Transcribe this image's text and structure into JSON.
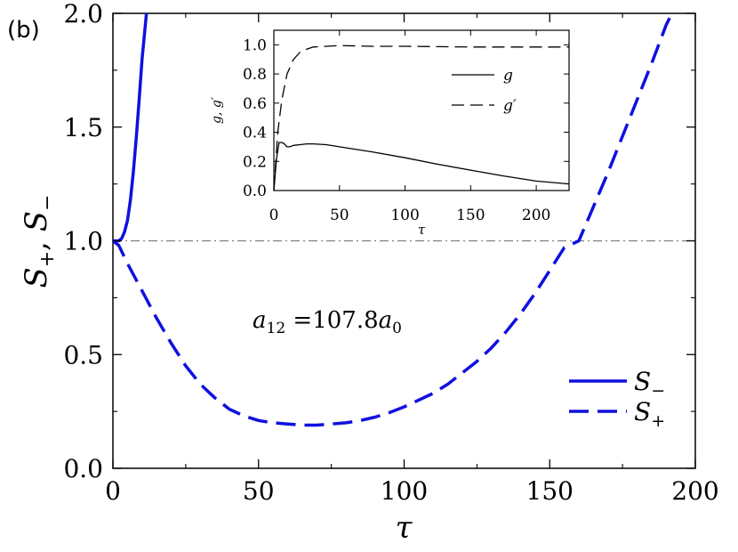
{
  "panel_label": "(b)",
  "annotation": {
    "base": "a",
    "sub": "12",
    "eq": " =107.8",
    "base2": "a",
    "sub2": "0"
  },
  "colors": {
    "main": "#1010e0",
    "ref": "#808080",
    "inset": "#000000"
  },
  "chart_data": [
    {
      "id": "main",
      "type": "line",
      "xlabel": "τ",
      "ylabel": {
        "s1": "S",
        "sub1": "+",
        "sep": ", ",
        "s2": "S",
        "sub2": "−"
      },
      "xlim": [
        0,
        200
      ],
      "ylim": [
        0,
        2.0
      ],
      "xticks": [
        0,
        50,
        100,
        150,
        200
      ],
      "xtick_labels": [
        "0",
        "50",
        "100",
        "150",
        "200"
      ],
      "yticks": [
        0,
        0.5,
        1.0,
        1.5,
        2.0
      ],
      "ytick_labels": [
        "0.0",
        "0.5",
        "1.0",
        "1.5",
        "2.0"
      ],
      "reference_line": {
        "y": 1.0,
        "style": "dash-dot"
      },
      "series": [
        {
          "name": "S−",
          "legend_sub": "−",
          "style": "solid",
          "x": [
            0,
            2,
            3,
            4,
            5,
            6,
            7,
            8,
            9,
            10,
            11.5
          ],
          "y": [
            1.0,
            1.0,
            1.01,
            1.04,
            1.09,
            1.18,
            1.3,
            1.45,
            1.62,
            1.8,
            2.0
          ]
        },
        {
          "name": "S+",
          "legend_sub": "+",
          "style": "dashed",
          "x": [
            0,
            2,
            5,
            10,
            15,
            20,
            25,
            30,
            35,
            40,
            45,
            50,
            55,
            60,
            65,
            70,
            75,
            80,
            85,
            90,
            95,
            100,
            105,
            110,
            115,
            120,
            125,
            130,
            135,
            140,
            145,
            150,
            155,
            160,
            165,
            170,
            175,
            180,
            185,
            190,
            192
          ],
          "y": [
            1.0,
            0.98,
            0.9,
            0.78,
            0.66,
            0.55,
            0.45,
            0.37,
            0.31,
            0.26,
            0.23,
            0.21,
            0.2,
            0.195,
            0.19,
            0.19,
            0.195,
            0.2,
            0.21,
            0.225,
            0.245,
            0.27,
            0.3,
            0.33,
            0.37,
            0.42,
            0.47,
            0.53,
            0.6,
            0.68,
            0.77,
            0.87,
            0.97,
            1.0,
            1.15,
            1.3,
            1.46,
            1.62,
            1.78,
            1.95,
            2.0
          ]
        }
      ],
      "legend_position": "lower-right"
    },
    {
      "id": "inset",
      "type": "line",
      "xlabel": "τ",
      "ylabel": "g, g′",
      "xlim": [
        0,
        225
      ],
      "ylim": [
        0,
        1.1
      ],
      "xticks": [
        0,
        50,
        100,
        150,
        200
      ],
      "xtick_labels": [
        "0",
        "50",
        "100",
        "150",
        "200"
      ],
      "yticks": [
        0,
        0.2,
        0.4,
        0.6,
        0.8,
        1.0
      ],
      "ytick_labels": [
        "0.0",
        "0.2",
        "0.4",
        "0.6",
        "0.8",
        "1.0"
      ],
      "series": [
        {
          "name": "g",
          "legend_label": "g",
          "style": "solid",
          "x": [
            0,
            2,
            4,
            6,
            8,
            10,
            12,
            15,
            20,
            25,
            30,
            40,
            50,
            75,
            100,
            125,
            150,
            175,
            200,
            225
          ],
          "y": [
            0.0,
            0.22,
            0.33,
            0.33,
            0.32,
            0.3,
            0.3,
            0.31,
            0.315,
            0.32,
            0.32,
            0.315,
            0.3,
            0.265,
            0.225,
            0.18,
            0.14,
            0.1,
            0.065,
            0.045
          ]
        },
        {
          "name": "g′",
          "legend_label": "g′",
          "style": "dashed",
          "x": [
            0,
            3,
            6,
            10,
            15,
            20,
            25,
            30,
            40,
            50,
            75,
            100,
            150,
            200,
            225
          ],
          "y": [
            0.0,
            0.4,
            0.62,
            0.8,
            0.9,
            0.95,
            0.97,
            0.985,
            0.99,
            0.995,
            0.99,
            0.99,
            0.985,
            0.985,
            0.985
          ]
        }
      ],
      "legend_position": "top-right"
    }
  ]
}
